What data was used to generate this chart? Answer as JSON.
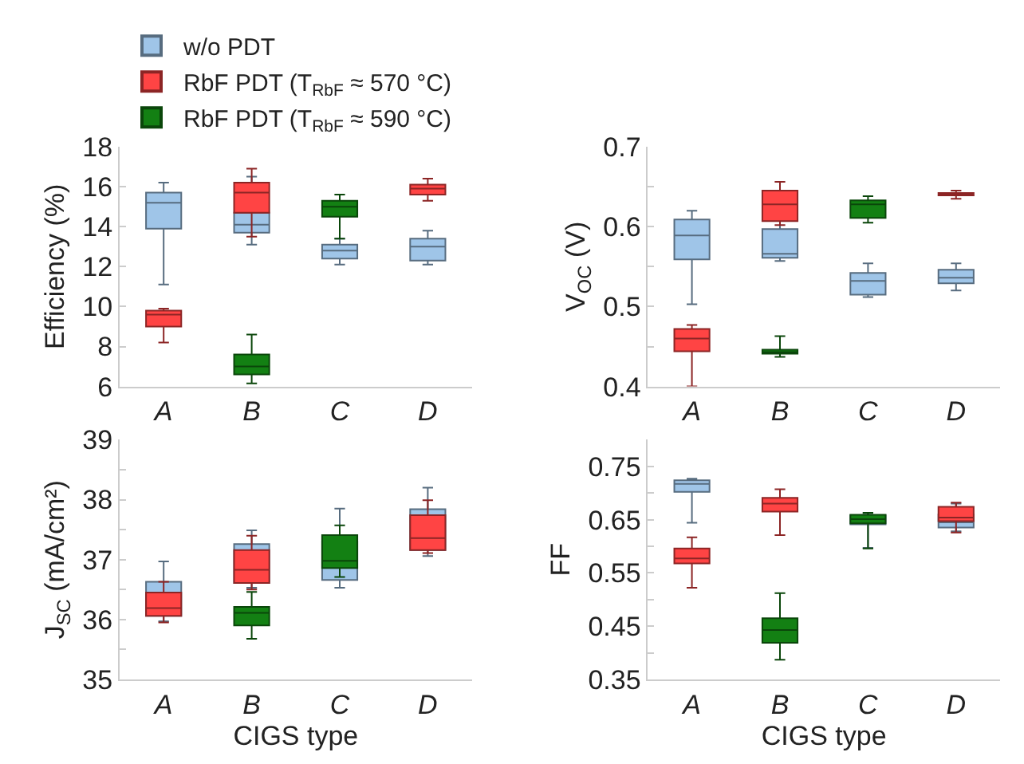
{
  "chart_data": [
    {
      "type": "box",
      "ylabel": "Efficiency (%)",
      "categories": [
        "A",
        "B",
        "C",
        "D"
      ],
      "ylim": [
        6,
        18
      ],
      "yticks": [
        6,
        8,
        10,
        12,
        14,
        16,
        18
      ],
      "legend": "top left",
      "series": [
        {
          "name": "w/o PDT",
          "color": "#9fc5e8",
          "boxes": [
            {
              "low": 11.1,
              "q1": 13.9,
              "median": 15.2,
              "q3": 15.7,
              "high": 16.2
            },
            {
              "low": 13.1,
              "q1": 13.7,
              "median": 14.1,
              "q3": 14.7,
              "high": 16.5
            },
            {
              "low": 12.1,
              "q1": 12.4,
              "median": 12.8,
              "q3": 13.1,
              "high": 13.4
            },
            {
              "low": 12.1,
              "q1": 12.3,
              "median": 13.0,
              "q3": 13.4,
              "high": 13.8
            }
          ]
        },
        {
          "name": "RbF PDT (T$_{RbF}$ ≈ 570 °C)",
          "color": "#ff4444",
          "boxes": [
            {
              "low": 8.2,
              "q1": 9.0,
              "median": 9.6,
              "q3": 9.8,
              "high": 9.9
            },
            {
              "low": 13.5,
              "q1": 14.7,
              "median": 15.7,
              "q3": 16.2,
              "high": 16.9
            },
            null,
            {
              "low": 15.3,
              "q1": 15.6,
              "median": 15.9,
              "q3": 16.1,
              "high": 16.4
            }
          ]
        },
        {
          "name": "RbF PDT (T$_{RbF}$ ≈ 590 °C)",
          "color": "#138013",
          "boxes": [
            null,
            {
              "low": 6.15,
              "q1": 6.6,
              "median": 7.0,
              "q3": 7.6,
              "high": 8.6
            },
            {
              "low": 13.4,
              "q1": 14.5,
              "median": 15.0,
              "q3": 15.3,
              "high": 15.6
            },
            null
          ]
        }
      ]
    },
    {
      "type": "box",
      "ylabel": "V$_{OC}$ (V)",
      "categories": [
        "A",
        "B",
        "C",
        "D"
      ],
      "ylim": [
        0.4,
        0.7
      ],
      "yticks": [
        0.4,
        {
          "value": 0.45,
          "label": null
        },
        0.5,
        {
          "value": 0.55,
          "label": null
        },
        0.6,
        {
          "value": 0.65,
          "label": null
        },
        0.7
      ],
      "series": [
        {
          "color": "#9fc5e8",
          "boxes": [
            {
              "low": 0.503,
              "q1": 0.559,
              "median": 0.589,
              "q3": 0.609,
              "high": 0.62
            },
            {
              "low": 0.557,
              "q1": 0.561,
              "median": 0.566,
              "q3": 0.597,
              "high": 0.625
            },
            {
              "low": 0.512,
              "q1": 0.515,
              "median": 0.532,
              "q3": 0.542,
              "high": 0.554
            },
            {
              "low": 0.52,
              "q1": 0.529,
              "median": 0.536,
              "q3": 0.546,
              "high": 0.554
            }
          ]
        },
        {
          "color": "#ff4444",
          "boxes": [
            {
              "low": 0.4,
              "q1": 0.444,
              "median": 0.46,
              "q3": 0.472,
              "high": 0.477
            },
            {
              "low": 0.602,
              "q1": 0.607,
              "median": 0.628,
              "q3": 0.645,
              "high": 0.656
            },
            null,
            {
              "low": 0.635,
              "q1": 0.639,
              "median": 0.64,
              "q3": 0.642,
              "high": 0.645
            }
          ]
        },
        {
          "color": "#138013",
          "boxes": [
            null,
            {
              "low": 0.437,
              "q1": 0.441,
              "median": 0.443,
              "q3": 0.446,
              "high": 0.463
            },
            {
              "low": 0.605,
              "q1": 0.611,
              "median": 0.628,
              "q3": 0.633,
              "high": 0.638
            },
            null
          ]
        }
      ]
    },
    {
      "type": "box",
      "ylabel": "J$_{SC}$ (mA/cm²)",
      "xlabel": "CIGS type",
      "categories": [
        "A",
        "B",
        "C",
        "D"
      ],
      "ylim": [
        35,
        39
      ],
      "yticks": [
        35,
        {
          "value": 35.5,
          "label": null
        },
        36,
        {
          "value": 36.5,
          "label": null
        },
        37,
        {
          "value": 37.5,
          "label": null
        },
        38,
        {
          "value": 38.5,
          "label": null
        },
        39
      ],
      "series": [
        {
          "color": "#9fc5e8",
          "boxes": [
            {
              "low": 35.97,
              "q1": 36.06,
              "median": 36.3,
              "q3": 36.63,
              "high": 36.97
            },
            {
              "low": 36.53,
              "q1": 36.61,
              "median": 36.9,
              "q3": 37.26,
              "high": 37.49
            },
            {
              "low": 36.53,
              "q1": 36.66,
              "median": 37.1,
              "q3": 37.3,
              "high": 37.85
            },
            {
              "low": 37.06,
              "q1": 37.16,
              "median": 37.45,
              "q3": 37.84,
              "high": 38.2
            }
          ]
        },
        {
          "color": "#ff4444",
          "boxes": [
            {
              "low": 35.95,
              "q1": 36.06,
              "median": 36.19,
              "q3": 36.45,
              "high": 36.63
            },
            {
              "low": 36.5,
              "q1": 36.61,
              "median": 36.83,
              "q3": 37.16,
              "high": 37.4
            },
            null,
            {
              "low": 37.11,
              "q1": 37.16,
              "median": 37.36,
              "q3": 37.74,
              "high": 37.99
            }
          ]
        },
        {
          "color": "#138013",
          "boxes": [
            null,
            {
              "low": 35.68,
              "q1": 35.9,
              "median": 36.11,
              "q3": 36.21,
              "high": 36.46
            },
            {
              "low": 36.71,
              "q1": 36.86,
              "median": 36.98,
              "q3": 37.41,
              "high": 37.57
            },
            null
          ]
        }
      ]
    },
    {
      "type": "box",
      "ylabel": "FF",
      "xlabel": "CIGS type",
      "categories": [
        "A",
        "B",
        "C",
        "D"
      ],
      "ylim": [
        0.35,
        0.8
      ],
      "yticks": [
        0.35,
        {
          "value": 0.4,
          "label": null
        },
        0.45,
        {
          "value": 0.5,
          "label": null
        },
        0.55,
        {
          "value": 0.6,
          "label": null
        },
        0.65,
        {
          "value": 0.7,
          "label": null
        },
        0.75
      ],
      "series": [
        {
          "color": "#9fc5e8",
          "boxes": [
            {
              "low": 0.644,
              "q1": 0.702,
              "median": 0.717,
              "q3": 0.724,
              "high": 0.727
            },
            null,
            {
              "low": 0.597,
              "q1": 0.641,
              "median": 0.651,
              "q3": 0.658,
              "high": 0.662
            },
            {
              "low": 0.628,
              "q1": 0.635,
              "median": 0.645,
              "q3": 0.66,
              "high": 0.68
            }
          ]
        },
        {
          "color": "#ff4444",
          "boxes": [
            {
              "low": 0.522,
              "q1": 0.568,
              "median": 0.577,
              "q3": 0.596,
              "high": 0.617
            },
            {
              "low": 0.621,
              "q1": 0.665,
              "median": 0.68,
              "q3": 0.691,
              "high": 0.707
            },
            null,
            {
              "low": 0.626,
              "q1": 0.647,
              "median": 0.654,
              "q3": 0.674,
              "high": 0.682
            }
          ]
        },
        {
          "color": "#138013",
          "boxes": [
            null,
            {
              "low": 0.387,
              "q1": 0.419,
              "median": 0.443,
              "q3": 0.465,
              "high": 0.512
            },
            {
              "low": 0.596,
              "q1": 0.643,
              "median": 0.651,
              "q3": 0.659,
              "high": 0.663
            },
            null
          ]
        }
      ]
    }
  ]
}
